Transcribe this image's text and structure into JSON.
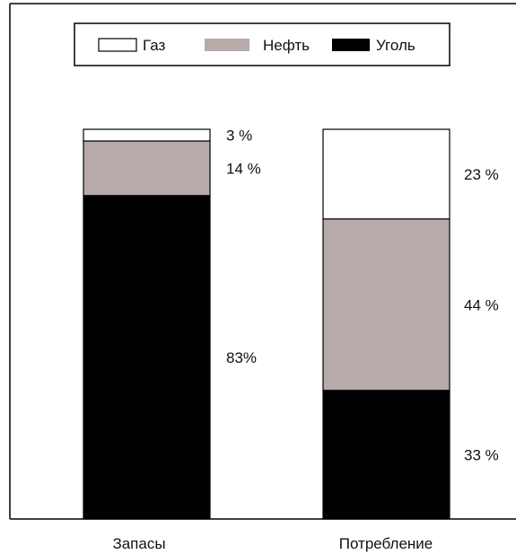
{
  "chart_data": {
    "type": "bar",
    "stacked": true,
    "categories": [
      "Запасы",
      "Потребление"
    ],
    "series": [
      {
        "name": "Газ",
        "color": "#ffffff",
        "values": [
          3,
          23
        ],
        "labels": [
          "3 %",
          "23 %"
        ]
      },
      {
        "name": "Нефть",
        "color": "#b8aaa9",
        "values": [
          14,
          44
        ],
        "labels": [
          "14 %",
          "44 %"
        ]
      },
      {
        "name": "Уголь",
        "color": "#000000",
        "values": [
          83,
          33
        ],
        "labels": [
          "83%",
          "33 %"
        ]
      }
    ],
    "ylim": [
      0,
      100
    ],
    "grid": false,
    "legend_position": "top-center"
  }
}
